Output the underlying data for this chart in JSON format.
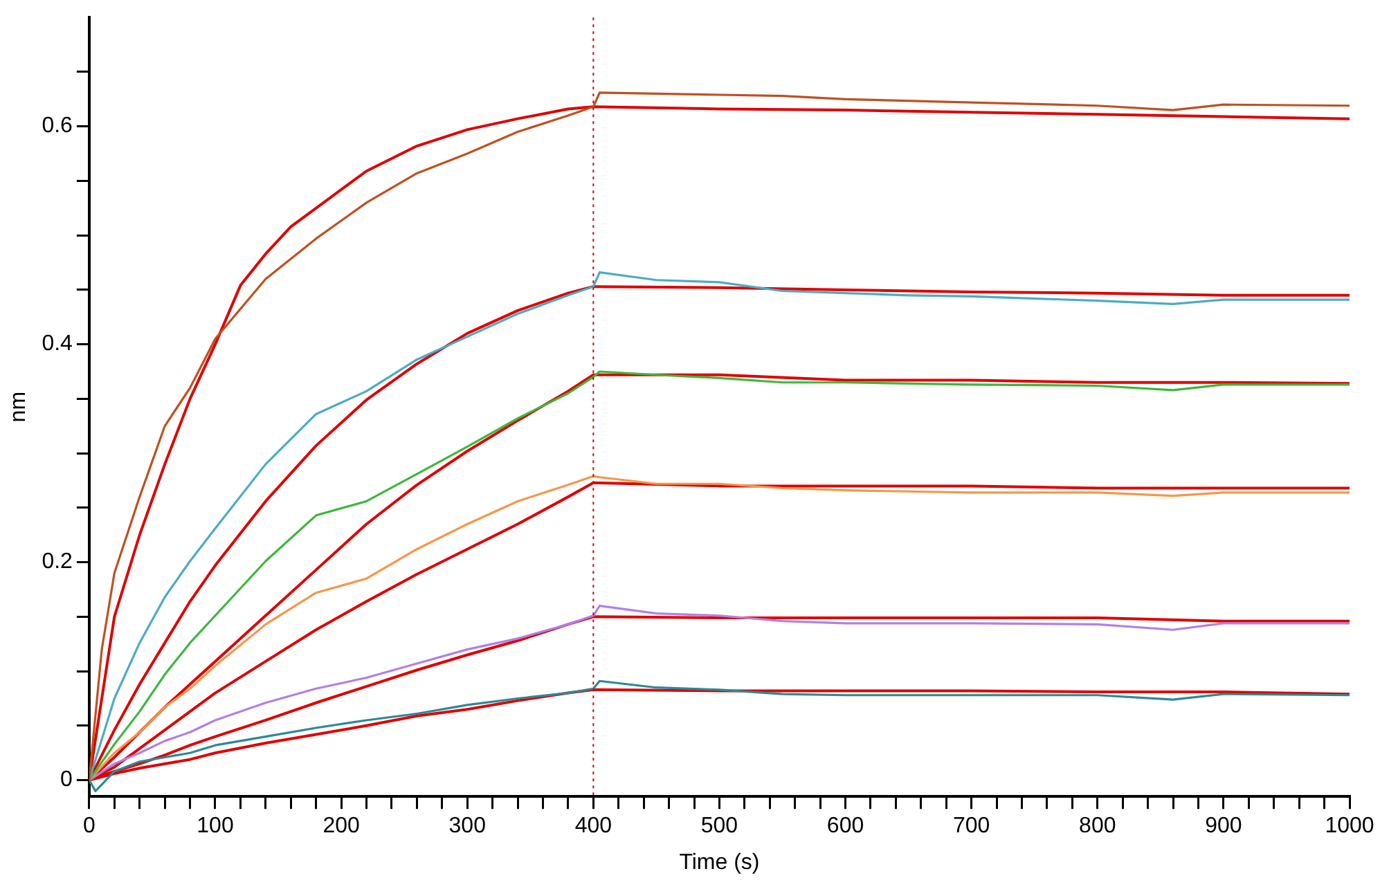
{
  "chart_data": {
    "type": "line",
    "xlabel": "Time (s)",
    "ylabel": "nm",
    "marker": "none",
    "grid": false,
    "line_style": "solid",
    "xlim": [
      0,
      1000
    ],
    "ylim": [
      -0.015,
      0.7
    ],
    "xticks": [
      0,
      {
        "value": 20,
        "label": null
      },
      {
        "value": 40,
        "label": null
      },
      {
        "value": 60,
        "label": null
      },
      {
        "value": 80,
        "label": null
      },
      100,
      {
        "value": 120,
        "label": null
      },
      {
        "value": 140,
        "label": null
      },
      {
        "value": 160,
        "label": null
      },
      {
        "value": 180,
        "label": null
      },
      200,
      {
        "value": 220,
        "label": null
      },
      {
        "value": 240,
        "label": null
      },
      {
        "value": 260,
        "label": null
      },
      {
        "value": 280,
        "label": null
      },
      300,
      {
        "value": 320,
        "label": null
      },
      {
        "value": 340,
        "label": null
      },
      {
        "value": 360,
        "label": null
      },
      {
        "value": 380,
        "label": null
      },
      400,
      {
        "value": 420,
        "label": null
      },
      {
        "value": 440,
        "label": null
      },
      {
        "value": 460,
        "label": null
      },
      {
        "value": 480,
        "label": null
      },
      500,
      {
        "value": 520,
        "label": null
      },
      {
        "value": 540,
        "label": null
      },
      {
        "value": 560,
        "label": null
      },
      {
        "value": 580,
        "label": null
      },
      600,
      {
        "value": 620,
        "label": null
      },
      {
        "value": 640,
        "label": null
      },
      {
        "value": 660,
        "label": null
      },
      {
        "value": 680,
        "label": null
      },
      700,
      {
        "value": 720,
        "label": null
      },
      {
        "value": 740,
        "label": null
      },
      {
        "value": 760,
        "label": null
      },
      {
        "value": 780,
        "label": null
      },
      800,
      {
        "value": 820,
        "label": null
      },
      {
        "value": 840,
        "label": null
      },
      {
        "value": 860,
        "label": null
      },
      {
        "value": 880,
        "label": null
      },
      900,
      {
        "value": 920,
        "label": null
      },
      {
        "value": 940,
        "label": null
      },
      {
        "value": 960,
        "label": null
      },
      {
        "value": 980,
        "label": null
      },
      1000
    ],
    "yticks": [
      0,
      {
        "value": 0.05,
        "label": null
      },
      {
        "value": 0.1,
        "label": null
      },
      {
        "value": 0.15,
        "label": null
      },
      0.2,
      {
        "value": 0.25,
        "label": null
      },
      {
        "value": 0.3,
        "label": null
      },
      {
        "value": 0.35,
        "label": null
      },
      0.4,
      {
        "value": 0.45,
        "label": null
      },
      {
        "value": 0.5,
        "label": null
      },
      {
        "value": 0.55,
        "label": null
      },
      0.6,
      {
        "value": 0.65,
        "label": null
      }
    ],
    "ref_lines": [
      {
        "axis": "x",
        "value": 400,
        "color": "#d00000",
        "line_style": "dotted"
      }
    ],
    "series": [
      {
        "color": "#c0501f",
        "x": [
          0,
          5,
          10,
          20,
          40,
          60,
          80,
          100,
          140,
          180,
          220,
          260,
          300,
          340,
          380,
          400,
          405,
          450,
          500,
          550,
          600,
          700,
          800,
          860,
          900,
          1000
        ],
        "values": [
          0,
          0.06,
          0.12,
          0.19,
          0.26,
          0.325,
          0.36,
          0.405,
          0.46,
          0.497,
          0.53,
          0.557,
          0.575,
          0.595,
          0.61,
          0.618,
          0.631,
          0.63,
          0.629,
          0.628,
          0.625,
          0.622,
          0.619,
          0.615,
          0.62,
          0.619
        ]
      },
      {
        "color": "#4bacc6",
        "x": [
          0,
          20,
          40,
          60,
          80,
          100,
          140,
          180,
          220,
          260,
          300,
          340,
          380,
          400,
          405,
          450,
          500,
          550,
          600,
          650,
          700,
          800,
          860,
          900,
          1000
        ],
        "values": [
          0,
          0.075,
          0.126,
          0.168,
          0.201,
          0.231,
          0.29,
          0.336,
          0.357,
          0.386,
          0.407,
          0.428,
          0.445,
          0.453,
          0.466,
          0.459,
          0.457,
          0.449,
          0.447,
          0.445,
          0.444,
          0.44,
          0.437,
          0.441,
          0.441
        ]
      },
      {
        "color": "#3cb83c",
        "x": [
          0,
          20,
          40,
          60,
          80,
          100,
          140,
          180,
          220,
          260,
          300,
          340,
          380,
          400,
          405,
          450,
          500,
          550,
          600,
          700,
          800,
          860,
          900,
          1000
        ],
        "values": [
          0,
          0.033,
          0.063,
          0.097,
          0.126,
          0.151,
          0.201,
          0.243,
          0.256,
          0.281,
          0.306,
          0.332,
          0.355,
          0.37,
          0.375,
          0.372,
          0.369,
          0.365,
          0.365,
          0.363,
          0.362,
          0.358,
          0.363,
          0.363
        ]
      },
      {
        "color": "#f79646",
        "x": [
          0,
          20,
          40,
          60,
          80,
          100,
          140,
          180,
          220,
          260,
          300,
          340,
          380,
          400,
          405,
          450,
          500,
          550,
          600,
          700,
          800,
          860,
          900,
          1000
        ],
        "values": [
          0,
          0.025,
          0.044,
          0.067,
          0.084,
          0.105,
          0.143,
          0.172,
          0.185,
          0.212,
          0.235,
          0.256,
          0.271,
          0.279,
          0.278,
          0.272,
          0.272,
          0.268,
          0.266,
          0.264,
          0.264,
          0.261,
          0.264,
          0.264
        ]
      },
      {
        "color": "#b080e6",
        "x": [
          0,
          20,
          40,
          60,
          80,
          100,
          140,
          180,
          220,
          260,
          300,
          340,
          380,
          400,
          405,
          450,
          500,
          550,
          600,
          700,
          800,
          860,
          900,
          1000
        ],
        "values": [
          0,
          0.015,
          0.025,
          0.036,
          0.044,
          0.055,
          0.071,
          0.084,
          0.094,
          0.107,
          0.12,
          0.13,
          0.143,
          0.151,
          0.16,
          0.153,
          0.151,
          0.146,
          0.144,
          0.144,
          0.143,
          0.138,
          0.144,
          0.144
        ]
      },
      {
        "color": "#2a8a96",
        "x": [
          0,
          5,
          20,
          40,
          60,
          80,
          100,
          140,
          180,
          220,
          260,
          300,
          340,
          380,
          400,
          405,
          450,
          500,
          550,
          600,
          700,
          800,
          860,
          900,
          1000
        ],
        "values": [
          0,
          -0.01,
          0.008,
          0.017,
          0.021,
          0.025,
          0.032,
          0.04,
          0.048,
          0.055,
          0.061,
          0.069,
          0.075,
          0.08,
          0.084,
          0.091,
          0.085,
          0.083,
          0.079,
          0.078,
          0.078,
          0.078,
          0.074,
          0.079,
          0.078
        ]
      },
      {
        "color": "#e00000",
        "x": [
          0,
          20,
          40,
          60,
          80,
          100,
          120,
          140,
          160,
          180,
          220,
          260,
          300,
          340,
          380,
          400,
          500,
          600,
          700,
          800,
          900,
          1000
        ],
        "values": [
          0,
          0.15,
          0.225,
          0.29,
          0.35,
          0.4,
          0.454,
          0.483,
          0.508,
          0.525,
          0.559,
          0.582,
          0.597,
          0.607,
          0.616,
          0.618,
          0.616,
          0.615,
          0.613,
          0.611,
          0.609,
          0.607
        ]
      },
      {
        "color": "#e00000",
        "x": [
          0,
          20,
          40,
          60,
          80,
          100,
          140,
          180,
          220,
          260,
          300,
          340,
          380,
          400,
          500,
          600,
          700,
          800,
          900,
          1000
        ],
        "values": [
          0,
          0.046,
          0.088,
          0.126,
          0.164,
          0.197,
          0.256,
          0.307,
          0.349,
          0.382,
          0.41,
          0.431,
          0.447,
          0.453,
          0.452,
          0.45,
          0.448,
          0.447,
          0.445,
          0.445
        ]
      },
      {
        "color": "#e00000",
        "x": [
          0,
          20,
          40,
          60,
          80,
          100,
          140,
          180,
          220,
          260,
          300,
          340,
          380,
          400,
          500,
          600,
          700,
          800,
          900,
          1000
        ],
        "values": [
          0,
          0.021,
          0.044,
          0.067,
          0.088,
          0.109,
          0.151,
          0.193,
          0.235,
          0.271,
          0.302,
          0.33,
          0.357,
          0.372,
          0.372,
          0.367,
          0.367,
          0.365,
          0.365,
          0.364
        ]
      },
      {
        "color": "#e00000",
        "x": [
          0,
          20,
          40,
          60,
          80,
          100,
          140,
          180,
          220,
          260,
          300,
          340,
          380,
          400,
          500,
          600,
          700,
          800,
          900,
          1000
        ],
        "values": [
          0,
          0.012,
          0.029,
          0.046,
          0.063,
          0.08,
          0.109,
          0.138,
          0.164,
          0.189,
          0.212,
          0.235,
          0.26,
          0.273,
          0.27,
          0.27,
          0.27,
          0.268,
          0.268,
          0.268
        ]
      },
      {
        "color": "#e00000",
        "x": [
          0,
          20,
          40,
          60,
          80,
          100,
          140,
          180,
          220,
          260,
          300,
          340,
          380,
          400,
          500,
          600,
          700,
          800,
          900,
          1000
        ],
        "values": [
          0,
          0.008,
          0.015,
          0.023,
          0.032,
          0.04,
          0.055,
          0.071,
          0.086,
          0.101,
          0.115,
          0.128,
          0.143,
          0.15,
          0.149,
          0.149,
          0.149,
          0.149,
          0.146,
          0.146
        ]
      },
      {
        "color": "#e00000",
        "x": [
          0,
          20,
          40,
          60,
          80,
          100,
          140,
          180,
          220,
          260,
          300,
          340,
          380,
          400,
          500,
          600,
          700,
          800,
          900,
          1000
        ],
        "values": [
          0,
          0.006,
          0.011,
          0.015,
          0.019,
          0.025,
          0.034,
          0.042,
          0.05,
          0.059,
          0.065,
          0.073,
          0.08,
          0.083,
          0.082,
          0.082,
          0.082,
          0.081,
          0.081,
          0.079
        ]
      }
    ]
  }
}
